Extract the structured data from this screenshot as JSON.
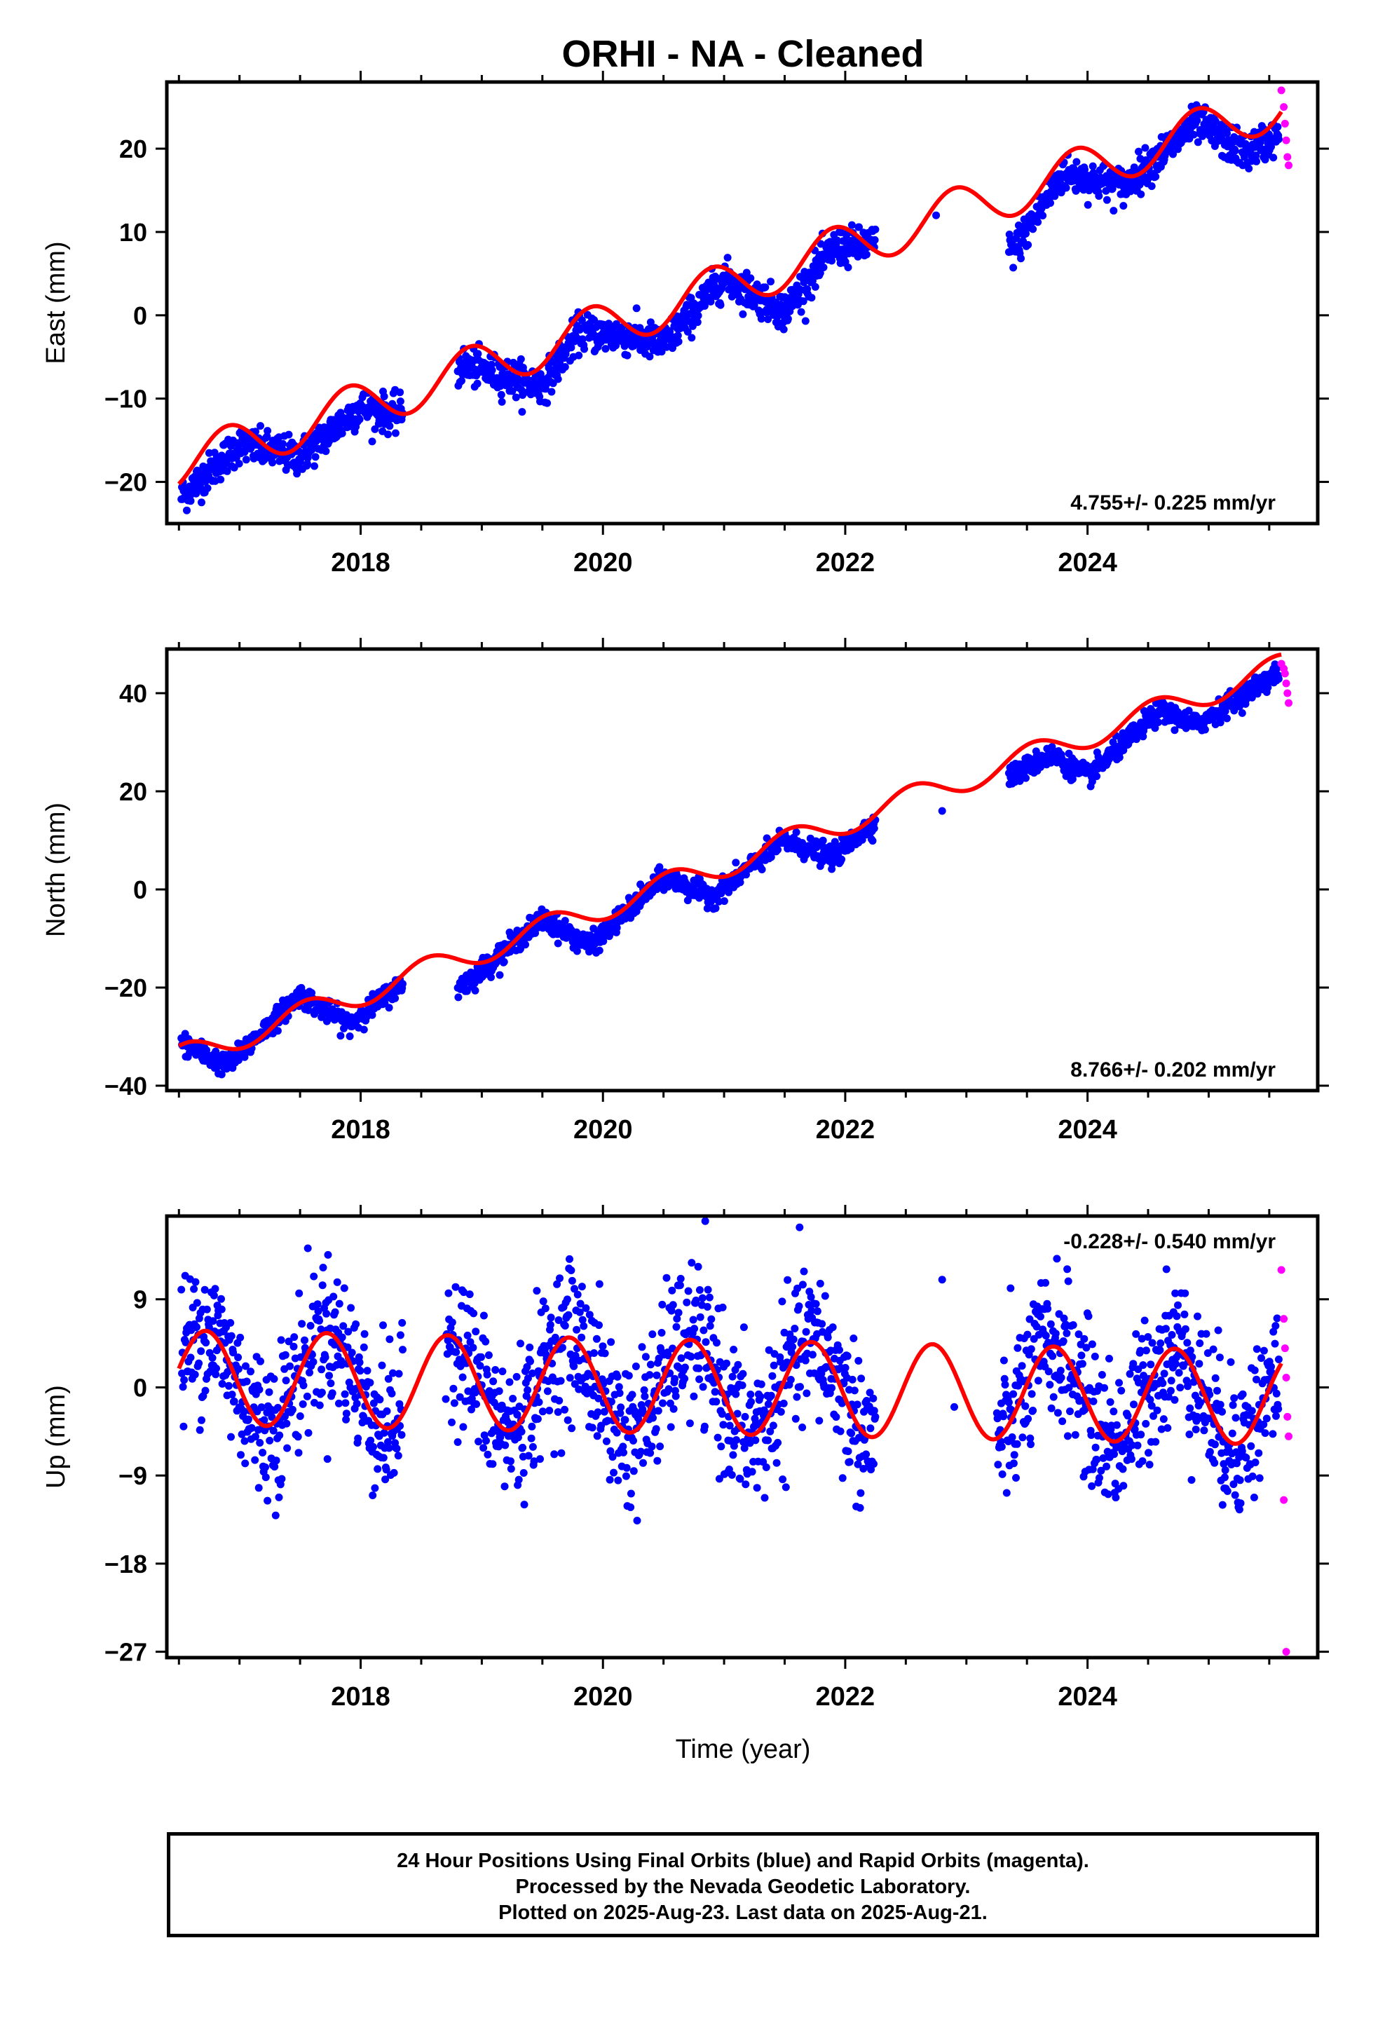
{
  "title": "ORHI  - NA - Cleaned",
  "xlabel": "Time (year)",
  "colors": {
    "final": "#0000ff",
    "rapid": "#ff00ff",
    "model": "#ff0000",
    "axes": "#000000"
  },
  "footer": {
    "line1": "24 Hour Positions Using Final Orbits (blue) and Rapid Orbits (magenta).",
    "line2": "Processed by the Nevada Geodetic Laboratory.",
    "line3": "Plotted on 2025-Aug-23. Last data on 2025-Aug-21."
  },
  "chart_data": [
    {
      "type": "scatter",
      "component": "east",
      "ylabel": "East (mm)",
      "xlim": [
        2016.4,
        2025.9
      ],
      "ylim": [
        -25,
        28
      ],
      "yticks": [
        -20,
        -10,
        0,
        10,
        20
      ],
      "xticks": [
        2018,
        2020,
        2022,
        2024
      ],
      "rate_label": "4.755+/- 0.225 mm/yr",
      "rate_label_position": "bottom-right",
      "gaps": [
        [
          2018.35,
          2018.8
        ],
        [
          2022.25,
          2023.35
        ]
      ],
      "final_orbits_trend": [
        {
          "x": 2016.5,
          "y": -22.0
        },
        {
          "x": 2017.0,
          "y": -15.5
        },
        {
          "x": 2017.5,
          "y": -17.0
        },
        {
          "x": 2018.0,
          "y": -11.0
        },
        {
          "x": 2018.3,
          "y": -12.0
        },
        {
          "x": 2018.85,
          "y": -6.0
        },
        {
          "x": 2019.5,
          "y": -8.5
        },
        {
          "x": 2019.8,
          "y": -2.0
        },
        {
          "x": 2020.2,
          "y": -2.5
        },
        {
          "x": 2020.5,
          "y": -3.5
        },
        {
          "x": 2021.0,
          "y": 4.5
        },
        {
          "x": 2021.5,
          "y": 0.5
        },
        {
          "x": 2021.9,
          "y": 8.0
        },
        {
          "x": 2022.2,
          "y": 8.5
        },
        {
          "x": 2023.4,
          "y": 8.0
        },
        {
          "x": 2023.8,
          "y": 17.0
        },
        {
          "x": 2024.3,
          "y": 15.5
        },
        {
          "x": 2024.9,
          "y": 23.0
        },
        {
          "x": 2025.3,
          "y": 19.5
        },
        {
          "x": 2025.55,
          "y": 21.5
        }
      ],
      "model": {
        "rate": 4.755,
        "offset": -15.6,
        "ref": 2017.0,
        "amplitude": 2.8,
        "phase_peak": 2016.9
      },
      "rapid_orbits": {
        "x": [
          2025.6,
          2025.62,
          2025.63,
          2025.64,
          2025.65,
          2025.66
        ],
        "y": [
          27,
          25,
          23,
          21,
          19,
          18
        ]
      }
    },
    {
      "type": "scatter",
      "component": "north",
      "ylabel": "North (mm)",
      "xlim": [
        2016.4,
        2025.9
      ],
      "ylim": [
        -41,
        49
      ],
      "yticks": [
        -40,
        -20,
        0,
        20,
        40
      ],
      "xticks": [
        2018,
        2020,
        2022,
        2024
      ],
      "rate_label": "8.766+/- 0.202 mm/yr",
      "rate_label_position": "bottom-right",
      "gaps": [
        [
          2018.35,
          2018.8
        ],
        [
          2022.25,
          2023.35
        ]
      ],
      "final_orbits_trend": [
        {
          "x": 2016.5,
          "y": -31.0
        },
        {
          "x": 2016.9,
          "y": -36.0
        },
        {
          "x": 2017.5,
          "y": -21.5
        },
        {
          "x": 2017.9,
          "y": -27.5
        },
        {
          "x": 2018.3,
          "y": -20.0
        },
        {
          "x": 2018.85,
          "y": -19.5
        },
        {
          "x": 2019.5,
          "y": -6.0
        },
        {
          "x": 2019.9,
          "y": -11.5
        },
        {
          "x": 2020.5,
          "y": 2.5
        },
        {
          "x": 2020.9,
          "y": -1.5
        },
        {
          "x": 2021.5,
          "y": 10.0
        },
        {
          "x": 2021.9,
          "y": 6.5
        },
        {
          "x": 2022.2,
          "y": 13.0
        },
        {
          "x": 2023.4,
          "y": 23.5
        },
        {
          "x": 2023.7,
          "y": 27.5
        },
        {
          "x": 2024.0,
          "y": 23.0
        },
        {
          "x": 2024.6,
          "y": 36.5
        },
        {
          "x": 2024.9,
          "y": 33.5
        },
        {
          "x": 2025.55,
          "y": 44.0
        }
      ],
      "model": {
        "rate": 8.766,
        "offset": -33.5,
        "ref": 2016.6,
        "amplitude": 2.6,
        "phase_peak": 2017.55
      },
      "rapid_orbits": {
        "x": [
          2025.6,
          2025.62,
          2025.63,
          2025.64,
          2025.65,
          2025.66
        ],
        "y": [
          46,
          45,
          44,
          42,
          40,
          38
        ]
      }
    },
    {
      "type": "scatter",
      "component": "up",
      "ylabel": "Up (mm)",
      "xlim": [
        2016.4,
        2025.9
      ],
      "ylim": [
        -27.6,
        17.5
      ],
      "yticks": [
        -27,
        -18,
        -9,
        0,
        9
      ],
      "xticks": [
        2018,
        2020,
        2022,
        2024
      ],
      "rate_label": "-0.228+/- 0.540 mm/yr",
      "rate_label_position": "top-right",
      "gaps": [
        [
          2018.35,
          2018.7
        ],
        [
          2022.25,
          2023.25
        ]
      ],
      "final_orbits_scatter": 3.8,
      "model": {
        "rate": -0.228,
        "offset": 0.0,
        "ref": 2021.0,
        "amplitude": 4.8,
        "phase_peak": 2016.72
      },
      "rapid_orbits": {
        "x": [
          2025.6,
          2025.62,
          2025.63,
          2025.64,
          2025.65,
          2025.66,
          2025.62,
          2025.64
        ],
        "y": [
          12,
          7,
          4,
          1,
          -3,
          -5,
          -11.5,
          -27
        ]
      }
    }
  ]
}
